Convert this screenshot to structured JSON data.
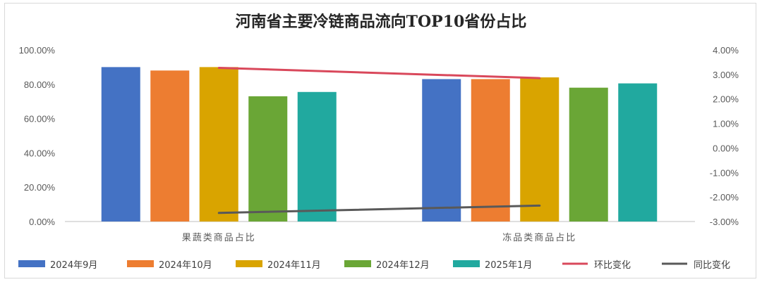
{
  "chart_data": {
    "type": "bar",
    "title": "河南省主要冷链商品流向TOP10省份占比",
    "categories": [
      "果蔬类商品占比",
      "冻品类商品占比"
    ],
    "ylim": [
      0,
      1.0
    ],
    "y_ticks": [
      "0.00%",
      "20.00%",
      "40.00%",
      "60.00%",
      "80.00%",
      "100.00%"
    ],
    "y2lim": [
      -0.03,
      0.04
    ],
    "y2_ticks": [
      "-3.00%",
      "-2.00%",
      "-1.00%",
      "0.00%",
      "1.00%",
      "2.00%",
      "3.00%",
      "4.00%"
    ],
    "series": [
      {
        "name": "2024年9月",
        "type": "bar",
        "color": "#4472C4",
        "values": [
          0.9,
          0.83
        ]
      },
      {
        "name": "2024年10月",
        "type": "bar",
        "color": "#ED7D31",
        "values": [
          0.88,
          0.83
        ]
      },
      {
        "name": "2024年11月",
        "type": "bar",
        "color": "#D9A400",
        "values": [
          0.9,
          0.84
        ]
      },
      {
        "name": "2024年12月",
        "type": "bar",
        "color": "#6AA636",
        "values": [
          0.73,
          0.78
        ]
      },
      {
        "name": "2025年1月",
        "type": "bar",
        "color": "#21A99F",
        "values": [
          0.755,
          0.805
        ]
      },
      {
        "name": "环比变化",
        "type": "line",
        "axis": "right",
        "color": "#D9485B",
        "values": [
          0.0327,
          0.0285
        ]
      },
      {
        "name": "同比变化",
        "type": "line",
        "axis": "right",
        "color": "#595959",
        "values": [
          -0.0265,
          -0.0235
        ]
      }
    ],
    "legend_position": "bottom",
    "grid": false
  }
}
